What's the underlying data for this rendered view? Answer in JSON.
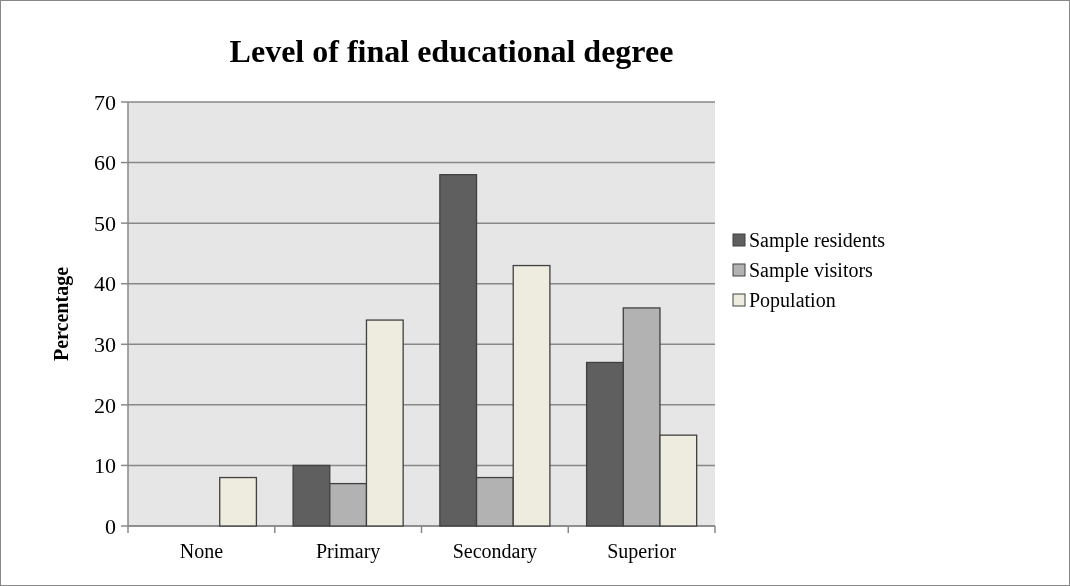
{
  "chart_data": {
    "type": "bar",
    "title": "Level of final educational degree",
    "ylabel": "Percentage",
    "categories": [
      "None",
      "Primary",
      "Secondary",
      "Superior"
    ],
    "series": [
      {
        "name": "Sample residents",
        "color": "#5f5f5f",
        "values": [
          0,
          10,
          58,
          27
        ]
      },
      {
        "name": "Sample visitors",
        "color": "#b2b2b2",
        "values": [
          0,
          7,
          8,
          36
        ]
      },
      {
        "name": "Population",
        "color": "#eeebdf",
        "values": [
          8,
          34,
          43,
          15
        ]
      }
    ],
    "ylim": [
      0,
      70
    ],
    "yticks": [
      0,
      10,
      20,
      30,
      40,
      50,
      60,
      70
    ],
    "grid": "y",
    "legend": "right"
  }
}
